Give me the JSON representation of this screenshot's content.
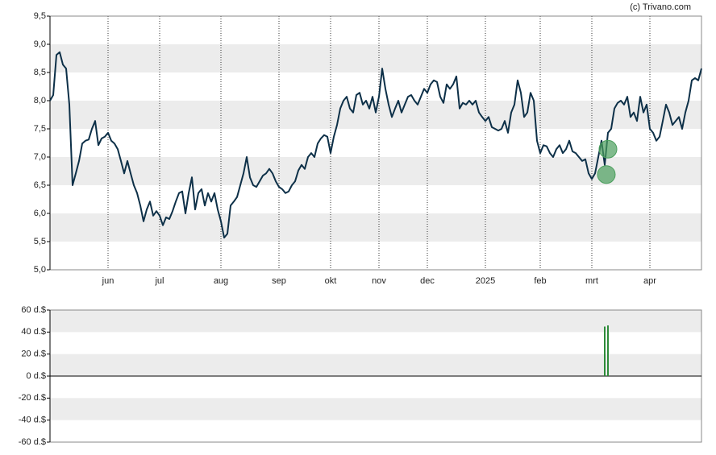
{
  "credit": "(c) Trivano.com",
  "chart_data": [
    {
      "type": "line",
      "x": [
        0,
        1,
        2,
        3,
        4,
        5,
        6,
        7,
        8,
        9,
        10,
        11,
        12,
        13,
        14,
        15,
        16,
        17,
        18,
        19,
        20,
        21,
        22,
        23,
        24,
        25,
        26,
        27,
        28,
        29,
        30,
        31,
        32,
        33,
        34,
        35,
        36,
        37,
        38,
        39,
        40,
        41,
        42,
        43,
        44,
        45,
        46,
        47,
        48,
        49,
        50,
        51,
        52,
        53,
        54,
        55,
        56,
        57,
        58,
        59,
        60,
        61,
        62,
        63,
        64,
        65,
        66,
        67,
        68,
        69,
        70,
        71,
        72,
        73,
        74,
        75,
        76,
        77,
        78,
        79,
        80,
        81,
        82,
        83,
        84,
        85,
        86,
        87,
        88,
        89,
        90,
        91,
        92,
        93,
        94,
        95,
        96,
        97,
        98,
        99,
        100,
        101,
        102,
        103,
        104,
        105,
        106,
        107,
        108,
        109,
        110,
        111,
        112,
        113,
        114,
        115,
        116,
        117,
        118,
        119,
        120,
        121,
        122,
        123,
        124,
        125,
        126,
        127,
        128,
        129,
        130,
        131,
        132,
        133,
        134,
        135,
        136,
        137,
        138,
        139,
        140,
        141,
        142,
        143,
        144,
        145,
        146,
        147,
        148,
        149,
        150,
        151,
        152,
        153,
        154,
        155,
        156,
        157,
        158,
        159,
        160,
        161,
        162,
        163,
        164,
        165,
        166,
        167,
        168,
        169,
        170,
        171,
        172,
        173,
        174,
        175,
        176,
        177,
        178,
        179,
        180,
        181,
        182,
        183,
        184,
        185,
        186,
        187,
        188,
        189,
        190,
        191,
        192,
        193,
        194,
        195,
        196,
        197,
        198,
        199,
        200,
        201,
        202
      ],
      "series": [
        {
          "color": "#0d3048",
          "values": [
            8.0,
            8.1,
            8.81,
            8.86,
            8.64,
            8.57,
            7.93,
            6.5,
            6.71,
            6.93,
            7.24,
            7.29,
            7.31,
            7.5,
            7.64,
            7.21,
            7.33,
            7.36,
            7.43,
            7.29,
            7.24,
            7.14,
            6.93,
            6.71,
            6.93,
            6.71,
            6.5,
            6.36,
            6.14,
            5.86,
            6.07,
            6.21,
            5.96,
            6.04,
            5.96,
            5.79,
            5.93,
            5.9,
            6.04,
            6.21,
            6.36,
            6.39,
            6.0,
            6.36,
            6.64,
            6.07,
            6.36,
            6.43,
            6.14,
            6.36,
            6.21,
            6.36,
            6.07,
            5.86,
            5.57,
            5.64,
            6.14,
            6.21,
            6.29,
            6.5,
            6.71,
            7.0,
            6.64,
            6.5,
            6.47,
            6.57,
            6.67,
            6.71,
            6.79,
            6.71,
            6.57,
            6.47,
            6.43,
            6.36,
            6.39,
            6.5,
            6.57,
            6.76,
            6.86,
            6.79,
            7.0,
            7.07,
            7.0,
            7.24,
            7.33,
            7.39,
            7.36,
            7.07,
            7.36,
            7.57,
            7.86,
            8.0,
            8.07,
            7.86,
            7.79,
            8.1,
            8.14,
            7.93,
            8.0,
            7.86,
            8.07,
            7.79,
            8.07,
            8.57,
            8.21,
            7.93,
            7.71,
            7.86,
            8.0,
            7.79,
            7.93,
            8.07,
            8.1,
            8.0,
            7.93,
            8.07,
            8.21,
            8.14,
            8.29,
            8.36,
            8.33,
            8.07,
            7.96,
            8.29,
            8.21,
            8.29,
            8.43,
            7.86,
            7.96,
            7.93,
            8.0,
            7.93,
            8.0,
            7.79,
            7.71,
            7.64,
            7.71,
            7.53,
            7.5,
            7.47,
            7.5,
            7.64,
            7.43,
            7.79,
            7.93,
            8.36,
            8.14,
            7.71,
            7.79,
            8.14,
            8.0,
            7.29,
            7.07,
            7.21,
            7.19,
            7.07,
            7.0,
            7.14,
            7.21,
            7.07,
            7.14,
            7.29,
            7.1,
            7.07,
            7.0,
            6.93,
            6.96,
            6.71,
            6.61,
            6.71,
            7.0,
            7.29,
            6.86,
            7.43,
            7.5,
            7.86,
            7.96,
            8.0,
            7.93,
            8.07,
            7.71,
            7.79,
            7.64,
            8.07,
            7.79,
            7.93,
            7.5,
            7.43,
            7.29,
            7.36,
            7.64,
            7.93,
            7.79,
            7.57,
            7.64,
            7.71,
            7.5,
            7.79,
            8.0,
            8.36,
            8.4,
            8.36,
            8.57
          ]
        }
      ],
      "markers": {
        "color": "#4a9e5c",
        "x": [
          173,
          172.5
        ],
        "y": [
          7.14,
          6.69
        ]
      },
      "xlim": [
        0,
        202
      ],
      "xticks": [
        {
          "value": 18,
          "label": "jun"
        },
        {
          "value": 34,
          "label": "jul"
        },
        {
          "value": 53,
          "label": "aug"
        },
        {
          "value": 71,
          "label": "sep"
        },
        {
          "value": 87,
          "label": "okt"
        },
        {
          "value": 102,
          "label": "nov"
        },
        {
          "value": 117,
          "label": "dec"
        },
        {
          "value": 135,
          "label": "2025"
        },
        {
          "value": 152,
          "label": "feb"
        },
        {
          "value": 168,
          "label": "mrt"
        },
        {
          "value": 186,
          "label": "apr"
        }
      ],
      "ylim": [
        5.0,
        9.5
      ],
      "yticks": [
        {
          "value": 5.0,
          "label": "5,0"
        },
        {
          "value": 5.5,
          "label": "5,5"
        },
        {
          "value": 6.0,
          "label": "6,0"
        },
        {
          "value": 6.5,
          "label": "6,5"
        },
        {
          "value": 7.0,
          "label": "7,0"
        },
        {
          "value": 7.5,
          "label": "7,5"
        },
        {
          "value": 8.0,
          "label": "8,0"
        },
        {
          "value": 8.5,
          "label": "8,5"
        },
        {
          "value": 9.0,
          "label": "9,0"
        },
        {
          "value": 9.5,
          "label": "9,5"
        }
      ]
    },
    {
      "type": "bar",
      "x": [
        172,
        173
      ],
      "values": [
        45,
        46
      ],
      "color": "#2e8b3a",
      "xlim": [
        0,
        202
      ],
      "ylim": [
        -60,
        60
      ],
      "yticks": [
        {
          "value": -60,
          "label": "-60 d.$"
        },
        {
          "value": -40,
          "label": "-40 d.$"
        },
        {
          "value": -20,
          "label": "-20 d.$"
        },
        {
          "value": 0,
          "label": "0 d.$"
        },
        {
          "value": 20,
          "label": "20 d.$"
        },
        {
          "value": 40,
          "label": "40 d.$"
        },
        {
          "value": 60,
          "label": "60 d.$"
        }
      ]
    }
  ]
}
